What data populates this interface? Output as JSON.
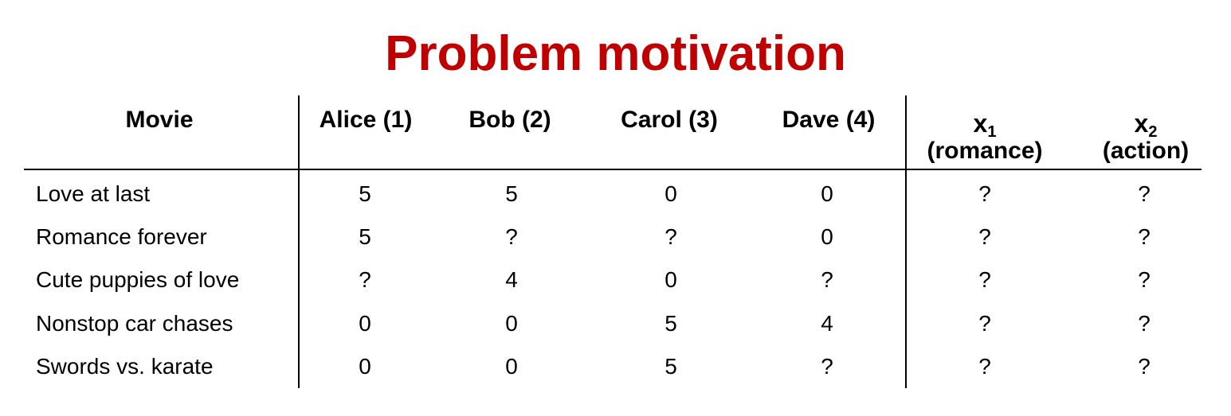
{
  "slide": {
    "title": "Problem motivation",
    "title_color": "#c00000"
  },
  "table": {
    "headers": {
      "movie": "Movie",
      "alice": "Alice (1)",
      "bob": "Bob (2)",
      "carol": "Carol (3)",
      "dave": "Dave (4)",
      "x1_symbol": "x",
      "x1_subscript": "1",
      "x1_desc": "(romance)",
      "x2_symbol": "x",
      "x2_subscript": "2",
      "x2_desc": "(action)"
    },
    "rows": [
      {
        "movie": "Love at last",
        "alice": "5",
        "bob": "5",
        "carol": "0",
        "dave": "0",
        "x1": "?",
        "x2": "?"
      },
      {
        "movie": "Romance forever",
        "alice": "5",
        "bob": "?",
        "carol": "?",
        "dave": "0",
        "x1": "?",
        "x2": "?"
      },
      {
        "movie": "Cute puppies of love",
        "alice": "?",
        "bob": "4",
        "carol": "0",
        "dave": "?",
        "x1": "?",
        "x2": "?"
      },
      {
        "movie": "Nonstop car chases",
        "alice": "0",
        "bob": "0",
        "carol": "5",
        "dave": "4",
        "x1": "?",
        "x2": "?"
      },
      {
        "movie": "Swords vs. karate",
        "alice": "0",
        "bob": "0",
        "carol": "5",
        "dave": "?",
        "x1": "?",
        "x2": "?"
      }
    ]
  }
}
